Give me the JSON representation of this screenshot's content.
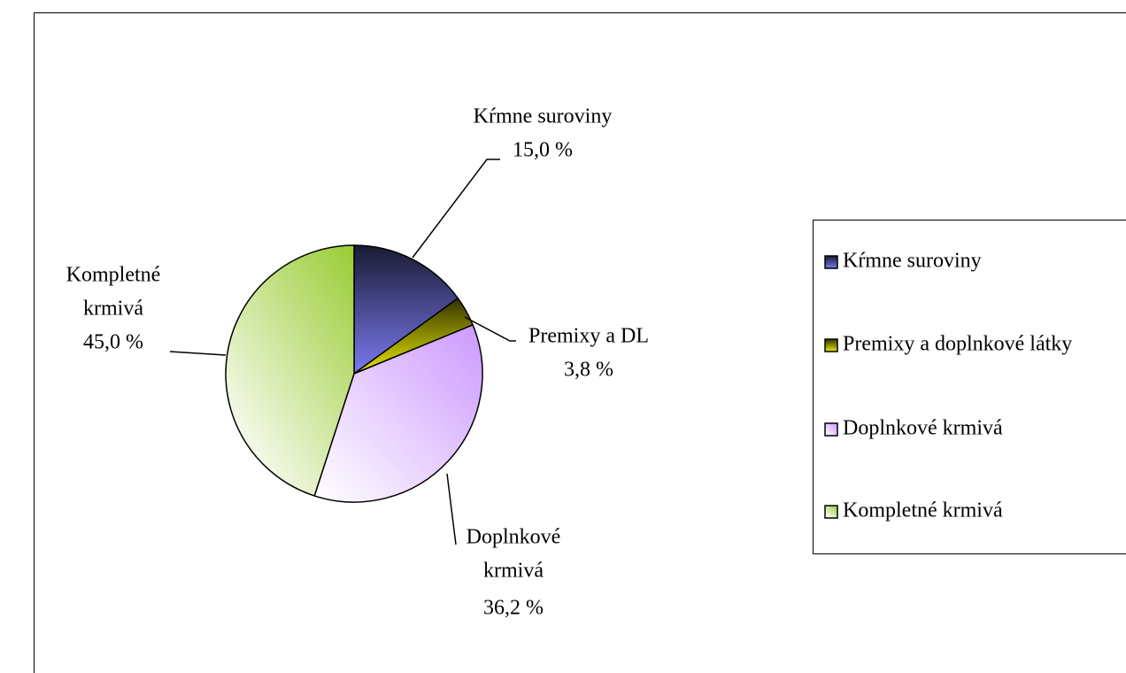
{
  "chart_data": {
    "type": "pie",
    "categories": [
      "Kŕmne suroviny",
      "Premixy a doplnkové látky",
      "Doplnkové krmivá",
      "Kompletné krmivá"
    ],
    "data_label_names": [
      [
        "Kŕmne suroviny"
      ],
      [
        "Premixy a DL"
      ],
      [
        "Doplnkové",
        "krmivá"
      ],
      [
        "Kompletné",
        "krmivá"
      ]
    ],
    "values": [
      15.0,
      3.8,
      36.2,
      45.0
    ],
    "value_labels": [
      "15,0 %",
      "3,8 %",
      "36,2 %",
      "45,0 %"
    ],
    "colors": [
      "#7a7af0",
      "#e8e800",
      "#cc99ff",
      "#99cc33"
    ],
    "legend": "right"
  }
}
